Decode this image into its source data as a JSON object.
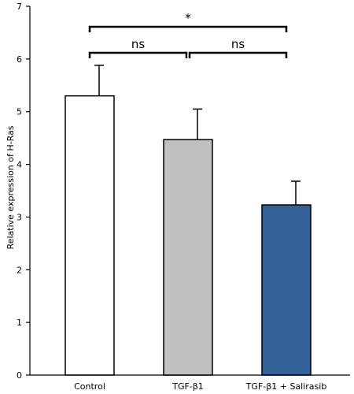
{
  "chart_data": {
    "type": "bar",
    "title": "",
    "xlabel": "",
    "ylabel": "Relative expression of H-Ras",
    "ylim": [
      0,
      7
    ],
    "yticks": [
      0,
      1,
      2,
      3,
      4,
      5,
      6,
      7
    ],
    "categories": [
      "Control",
      "TGF-β1",
      "TGF-β1 + Salirasib"
    ],
    "values": [
      5.3,
      4.47,
      3.23
    ],
    "errors": [
      0.58,
      0.58,
      0.45
    ],
    "colors": [
      "#ffffff",
      "#c0c0c0",
      "#336096"
    ],
    "grid": false,
    "significance": [
      {
        "from": 0,
        "to": 1,
        "label": "ns"
      },
      {
        "from": 1,
        "to": 2,
        "label": "ns"
      },
      {
        "from": 0,
        "to": 2,
        "label": "*"
      }
    ]
  }
}
